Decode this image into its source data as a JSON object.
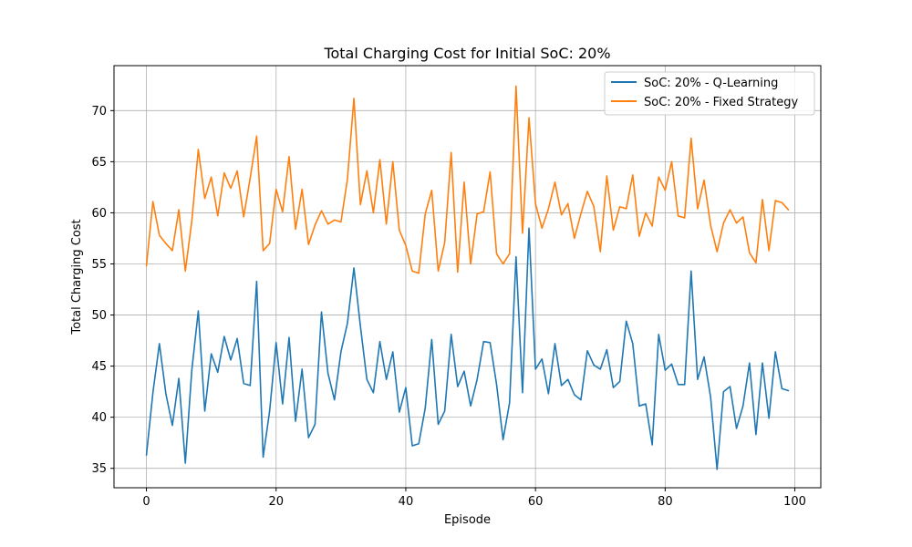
{
  "chart_data": {
    "type": "line",
    "title": "Total Charging Cost for Initial SoC: 20%",
    "xlabel": "Episode",
    "ylabel": "Total Charging Cost",
    "xlim": [
      -5,
      104
    ],
    "ylim": [
      33.1,
      74.4
    ],
    "xticks": [
      0,
      20,
      40,
      60,
      80,
      100
    ],
    "yticks": [
      35,
      40,
      45,
      50,
      55,
      60,
      65,
      70
    ],
    "grid": true,
    "legend_position": "top-right",
    "x": [
      0,
      1,
      2,
      3,
      4,
      5,
      6,
      7,
      8,
      9,
      10,
      11,
      12,
      13,
      14,
      15,
      16,
      17,
      18,
      19,
      20,
      21,
      22,
      23,
      24,
      25,
      26,
      27,
      28,
      29,
      30,
      31,
      32,
      33,
      34,
      35,
      36,
      37,
      38,
      39,
      40,
      41,
      42,
      43,
      44,
      45,
      46,
      47,
      48,
      49,
      50,
      51,
      52,
      53,
      54,
      55,
      56,
      57,
      58,
      59,
      60,
      61,
      62,
      63,
      64,
      65,
      66,
      67,
      68,
      69,
      70,
      71,
      72,
      73,
      74,
      75,
      76,
      77,
      78,
      79,
      80,
      81,
      82,
      83,
      84,
      85,
      86,
      87,
      88,
      89,
      90,
      91,
      92,
      93,
      94,
      95,
      96,
      97,
      98,
      99
    ],
    "series": [
      {
        "name": "SoC: 20% - Q-Learning",
        "color": "#1f77b4",
        "values": [
          36.3,
          42.4,
          47.2,
          42.3,
          39.2,
          43.8,
          35.5,
          44.6,
          50.4,
          40.6,
          46.2,
          44.4,
          47.9,
          45.6,
          47.7,
          43.3,
          43.1,
          53.3,
          36.1,
          40.6,
          47.3,
          41.3,
          47.8,
          39.6,
          44.7,
          38.0,
          39.3,
          50.3,
          44.3,
          41.7,
          46.4,
          49.2,
          54.6,
          48.9,
          43.7,
          42.4,
          47.4,
          43.7,
          46.4,
          40.5,
          42.9,
          37.2,
          37.4,
          40.9,
          47.6,
          39.3,
          40.6,
          48.1,
          43.0,
          44.5,
          41.1,
          43.7,
          47.4,
          47.3,
          43.2,
          37.8,
          41.4,
          55.7,
          42.4,
          58.5,
          44.7,
          45.7,
          42.3,
          47.2,
          43.1,
          43.7,
          42.2,
          41.7,
          46.5,
          45.1,
          44.7,
          46.6,
          42.9,
          43.5,
          49.4,
          47.2,
          41.1,
          41.3,
          37.3,
          48.1,
          44.6,
          45.2,
          43.2,
          43.2,
          54.3,
          43.7,
          45.9,
          42.0,
          34.9,
          42.5,
          43.0,
          38.9,
          41.1,
          45.3,
          38.3,
          45.3,
          39.9,
          46.4,
          42.8,
          42.6
        ]
      },
      {
        "name": "SoC: 20% - Fixed Strategy",
        "color": "#ff7f0e",
        "values": [
          54.8,
          61.1,
          57.8,
          57.0,
          56.3,
          60.3,
          54.3,
          59.2,
          66.2,
          61.4,
          63.5,
          59.7,
          63.9,
          62.4,
          64.1,
          59.6,
          63.4,
          67.5,
          56.3,
          57.0,
          62.3,
          60.1,
          65.5,
          58.4,
          62.3,
          56.9,
          58.8,
          60.2,
          58.9,
          59.3,
          59.1,
          63.3,
          71.2,
          60.8,
          64.1,
          60.0,
          65.2,
          58.9,
          65.0,
          58.3,
          56.8,
          54.3,
          54.1,
          59.9,
          62.2,
          54.3,
          57.1,
          65.9,
          54.2,
          63.0,
          55.0,
          59.9,
          60.1,
          64.0,
          56.0,
          55.0,
          56.0,
          72.4,
          58.0,
          69.3,
          60.9,
          58.5,
          60.4,
          63.0,
          59.8,
          60.9,
          57.5,
          59.9,
          62.1,
          60.6,
          56.2,
          63.6,
          58.3,
          60.6,
          60.4,
          63.7,
          57.7,
          60.0,
          58.7,
          63.5,
          62.2,
          65.0,
          59.7,
          59.5,
          67.3,
          60.4,
          63.2,
          58.8,
          56.2,
          59.0,
          60.3,
          59.0,
          59.6,
          56.1,
          55.1,
          61.3,
          56.3,
          61.2,
          61.0,
          60.3
        ]
      }
    ]
  }
}
